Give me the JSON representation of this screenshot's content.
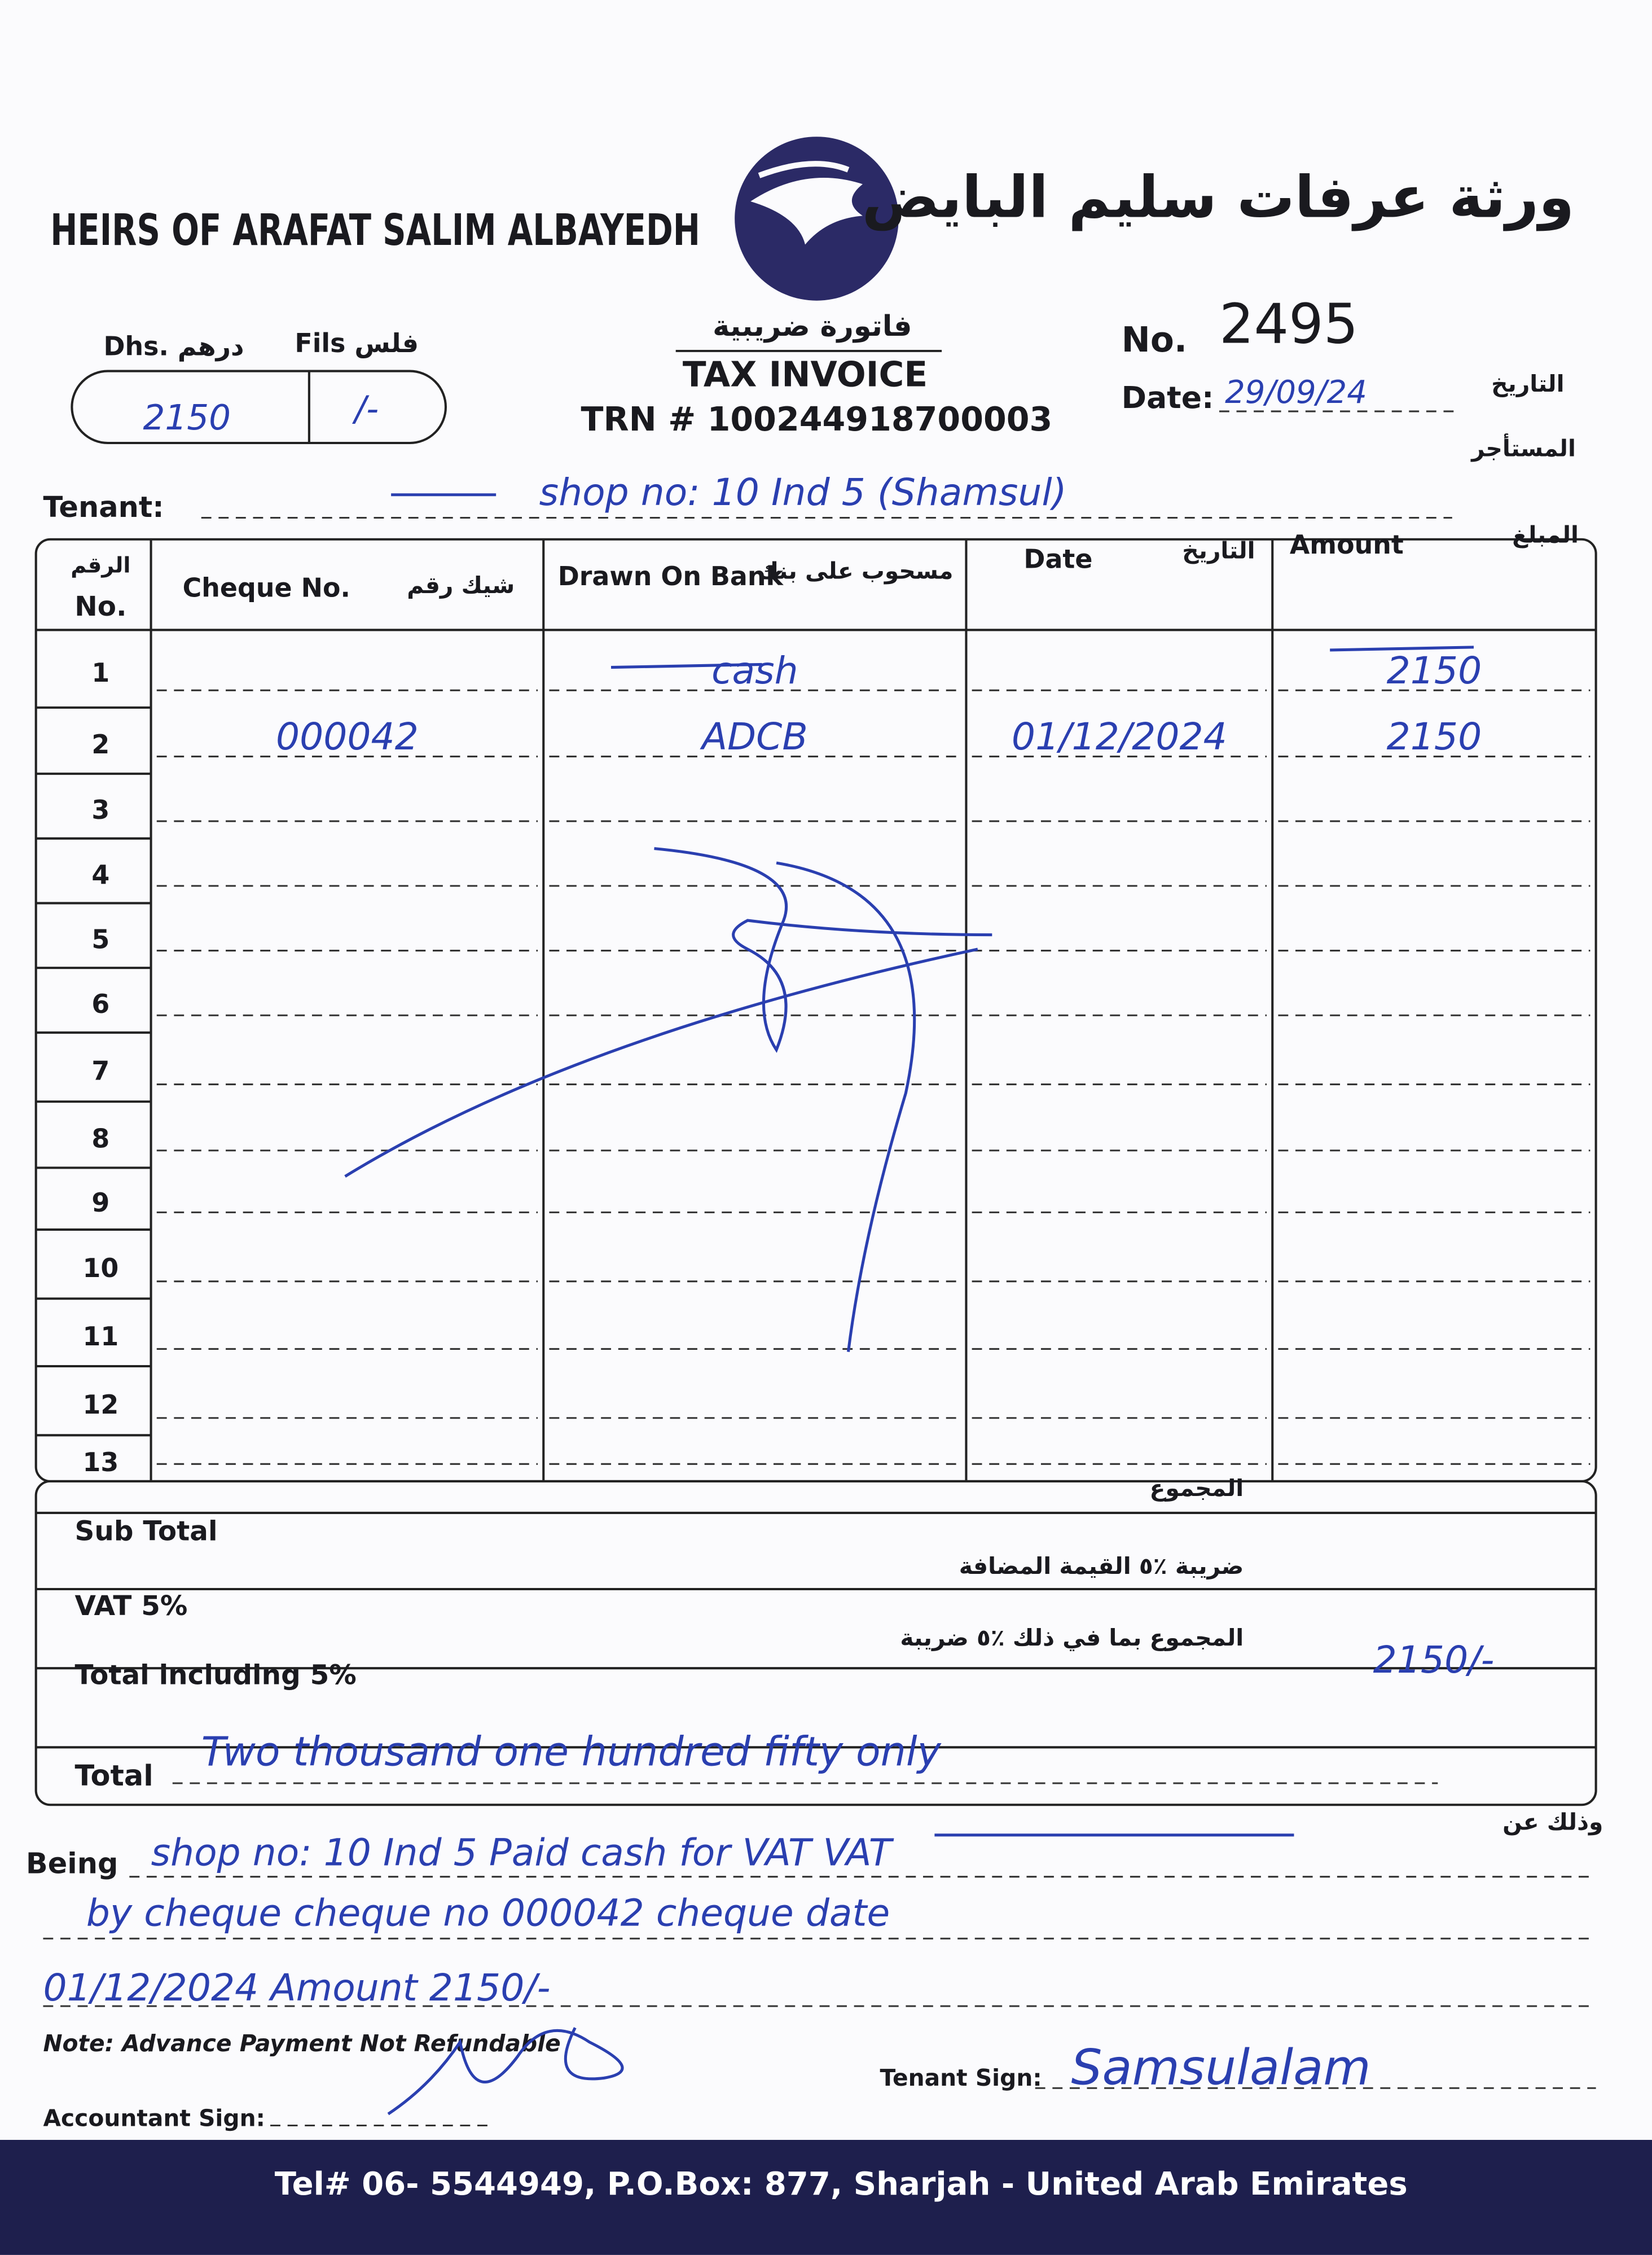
{
  "header": {
    "company_en": "HEIRS OF ARAFAT SALIM ALBAYEDH",
    "company_ar": "ورثة عرفات سليم البايض",
    "title_ar": "فاتورة ضريبية",
    "title_en": "TAX INVOICE",
    "trn": "TRN # 100244918700003",
    "no_label": "No.",
    "no": "2495",
    "date_label": "Date:",
    "date_label_ar": "التاريخ",
    "date": "29/09/24"
  },
  "amount_box": {
    "dhs_label": "Dhs. درهم",
    "fils_label": "Fils فلس",
    "dhs": "2150",
    "fils": "/-"
  },
  "tenant": {
    "label": "Tenant:",
    "label_ar": "المستأجر",
    "value": "shop no: 10 Ind 5 (Shamsul)"
  },
  "table": {
    "headers": [
      {
        "en": "No.",
        "ar": "الرقم"
      },
      {
        "en": "Cheque No.",
        "ar": "شيك رقم"
      },
      {
        "en": "Drawn On Bank",
        "ar": "مسحوب على بنك"
      },
      {
        "en": "Date",
        "ar": "التاريخ"
      },
      {
        "en": "Amount",
        "ar": "المبلغ"
      }
    ],
    "rows": [
      [
        "1",
        "",
        "cash",
        "",
        "2150"
      ],
      [
        "2",
        "000042",
        "ADCB",
        "01/12/2024",
        "2150"
      ],
      [
        "3",
        "",
        "",
        "",
        ""
      ],
      [
        "4",
        "",
        "",
        "",
        ""
      ],
      [
        "5",
        "",
        "",
        "",
        ""
      ],
      [
        "6",
        "",
        "",
        "",
        ""
      ],
      [
        "7",
        "",
        "",
        "",
        ""
      ],
      [
        "8",
        "",
        "",
        "",
        ""
      ],
      [
        "9",
        "",
        "",
        "",
        ""
      ],
      [
        "10",
        "",
        "",
        "",
        ""
      ],
      [
        "11",
        "",
        "",
        "",
        ""
      ],
      [
        "12",
        "",
        "",
        "",
        ""
      ],
      [
        "13",
        "",
        "",
        "",
        ""
      ]
    ]
  },
  "totals": {
    "subtotal_label": "Sub Total",
    "subtotal_label_ar": "المجموع",
    "vat_label": "VAT 5%",
    "vat_label_ar": "ضريبة ٪٥ القيمة المضافة",
    "total_incl_label": "Total including 5%",
    "total_incl_label_ar": "المجموع بما في ذلك ٪٥ ضريبة",
    "total_incl_value": "2150/-",
    "total_label": "Total",
    "total_words": "Two thousand one hundred fifty only"
  },
  "being": {
    "label": "Being",
    "label_ar": "وذلك عن",
    "lines": [
      "shop no: 10 Ind 5 Paid cash for VAT VAT",
      "by cheque cheque no 000042 cheque date",
      "01/12/2024 Amount 2150/-"
    ]
  },
  "note": "Note: Advance Payment Not Refundable",
  "signatures": {
    "tenant_label": "Tenant Sign:",
    "tenant_value": "Samsulalam",
    "accountant_label": "Accountant Sign:"
  },
  "footer": "Tel# 06- 5544949, P.O.Box: 877, Sharjah - United Arab Emirates"
}
